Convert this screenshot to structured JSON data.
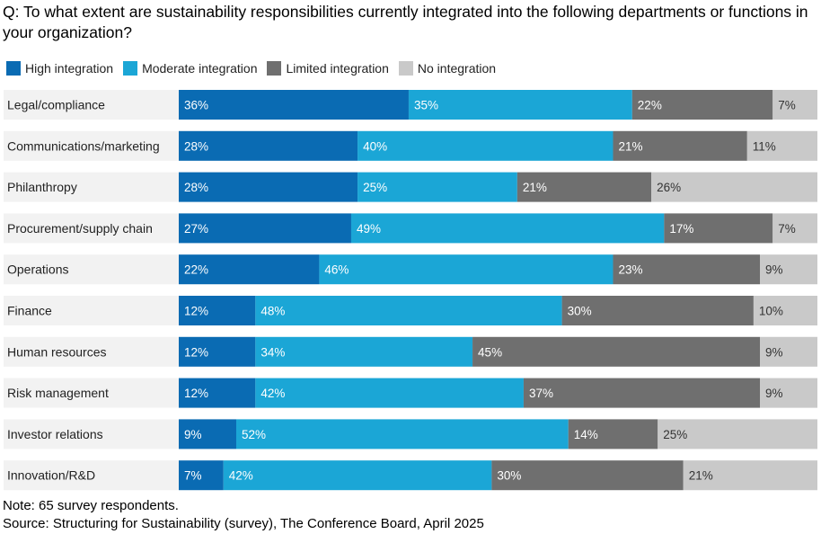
{
  "title": "Q: To what extent are sustainability responsibilities currently integrated into the following departments or functions in your organization?",
  "note": "Note: 65 survey respondents.",
  "source": "Source: Structuring for Sustainability (survey), The Conference Board, April 2025",
  "colors": {
    "high": "#0a6bb3",
    "moderate": "#1ba6d6",
    "limited": "#6f6f6f",
    "none": "#c9c9c9",
    "row_bg": "#f2f2f2",
    "label_text_light": "#ffffff",
    "label_text_dark": "#333333"
  },
  "chart_data": {
    "type": "bar",
    "orientation": "horizontal",
    "stacked": true,
    "legend_position": "top-left",
    "categories": [
      "Legal/compliance",
      "Communications/marketing",
      "Philanthropy",
      "Procurement/supply chain",
      "Operations",
      "Finance",
      "Human resources",
      "Risk management",
      "Investor relations",
      "Innovation/R&D"
    ],
    "series": [
      {
        "name": "High integration",
        "key": "high",
        "values": [
          36,
          28,
          28,
          27,
          22,
          12,
          12,
          12,
          9,
          7
        ]
      },
      {
        "name": "Moderate integration",
        "key": "moderate",
        "values": [
          35,
          40,
          25,
          49,
          46,
          48,
          34,
          42,
          52,
          42
        ]
      },
      {
        "name": "Limited integration",
        "key": "limited",
        "values": [
          22,
          21,
          21,
          17,
          23,
          30,
          45,
          37,
          14,
          30
        ]
      },
      {
        "name": "No integration",
        "key": "none",
        "values": [
          7,
          11,
          26,
          7,
          9,
          10,
          9,
          9,
          25,
          21
        ]
      }
    ],
    "value_suffix": "%"
  }
}
